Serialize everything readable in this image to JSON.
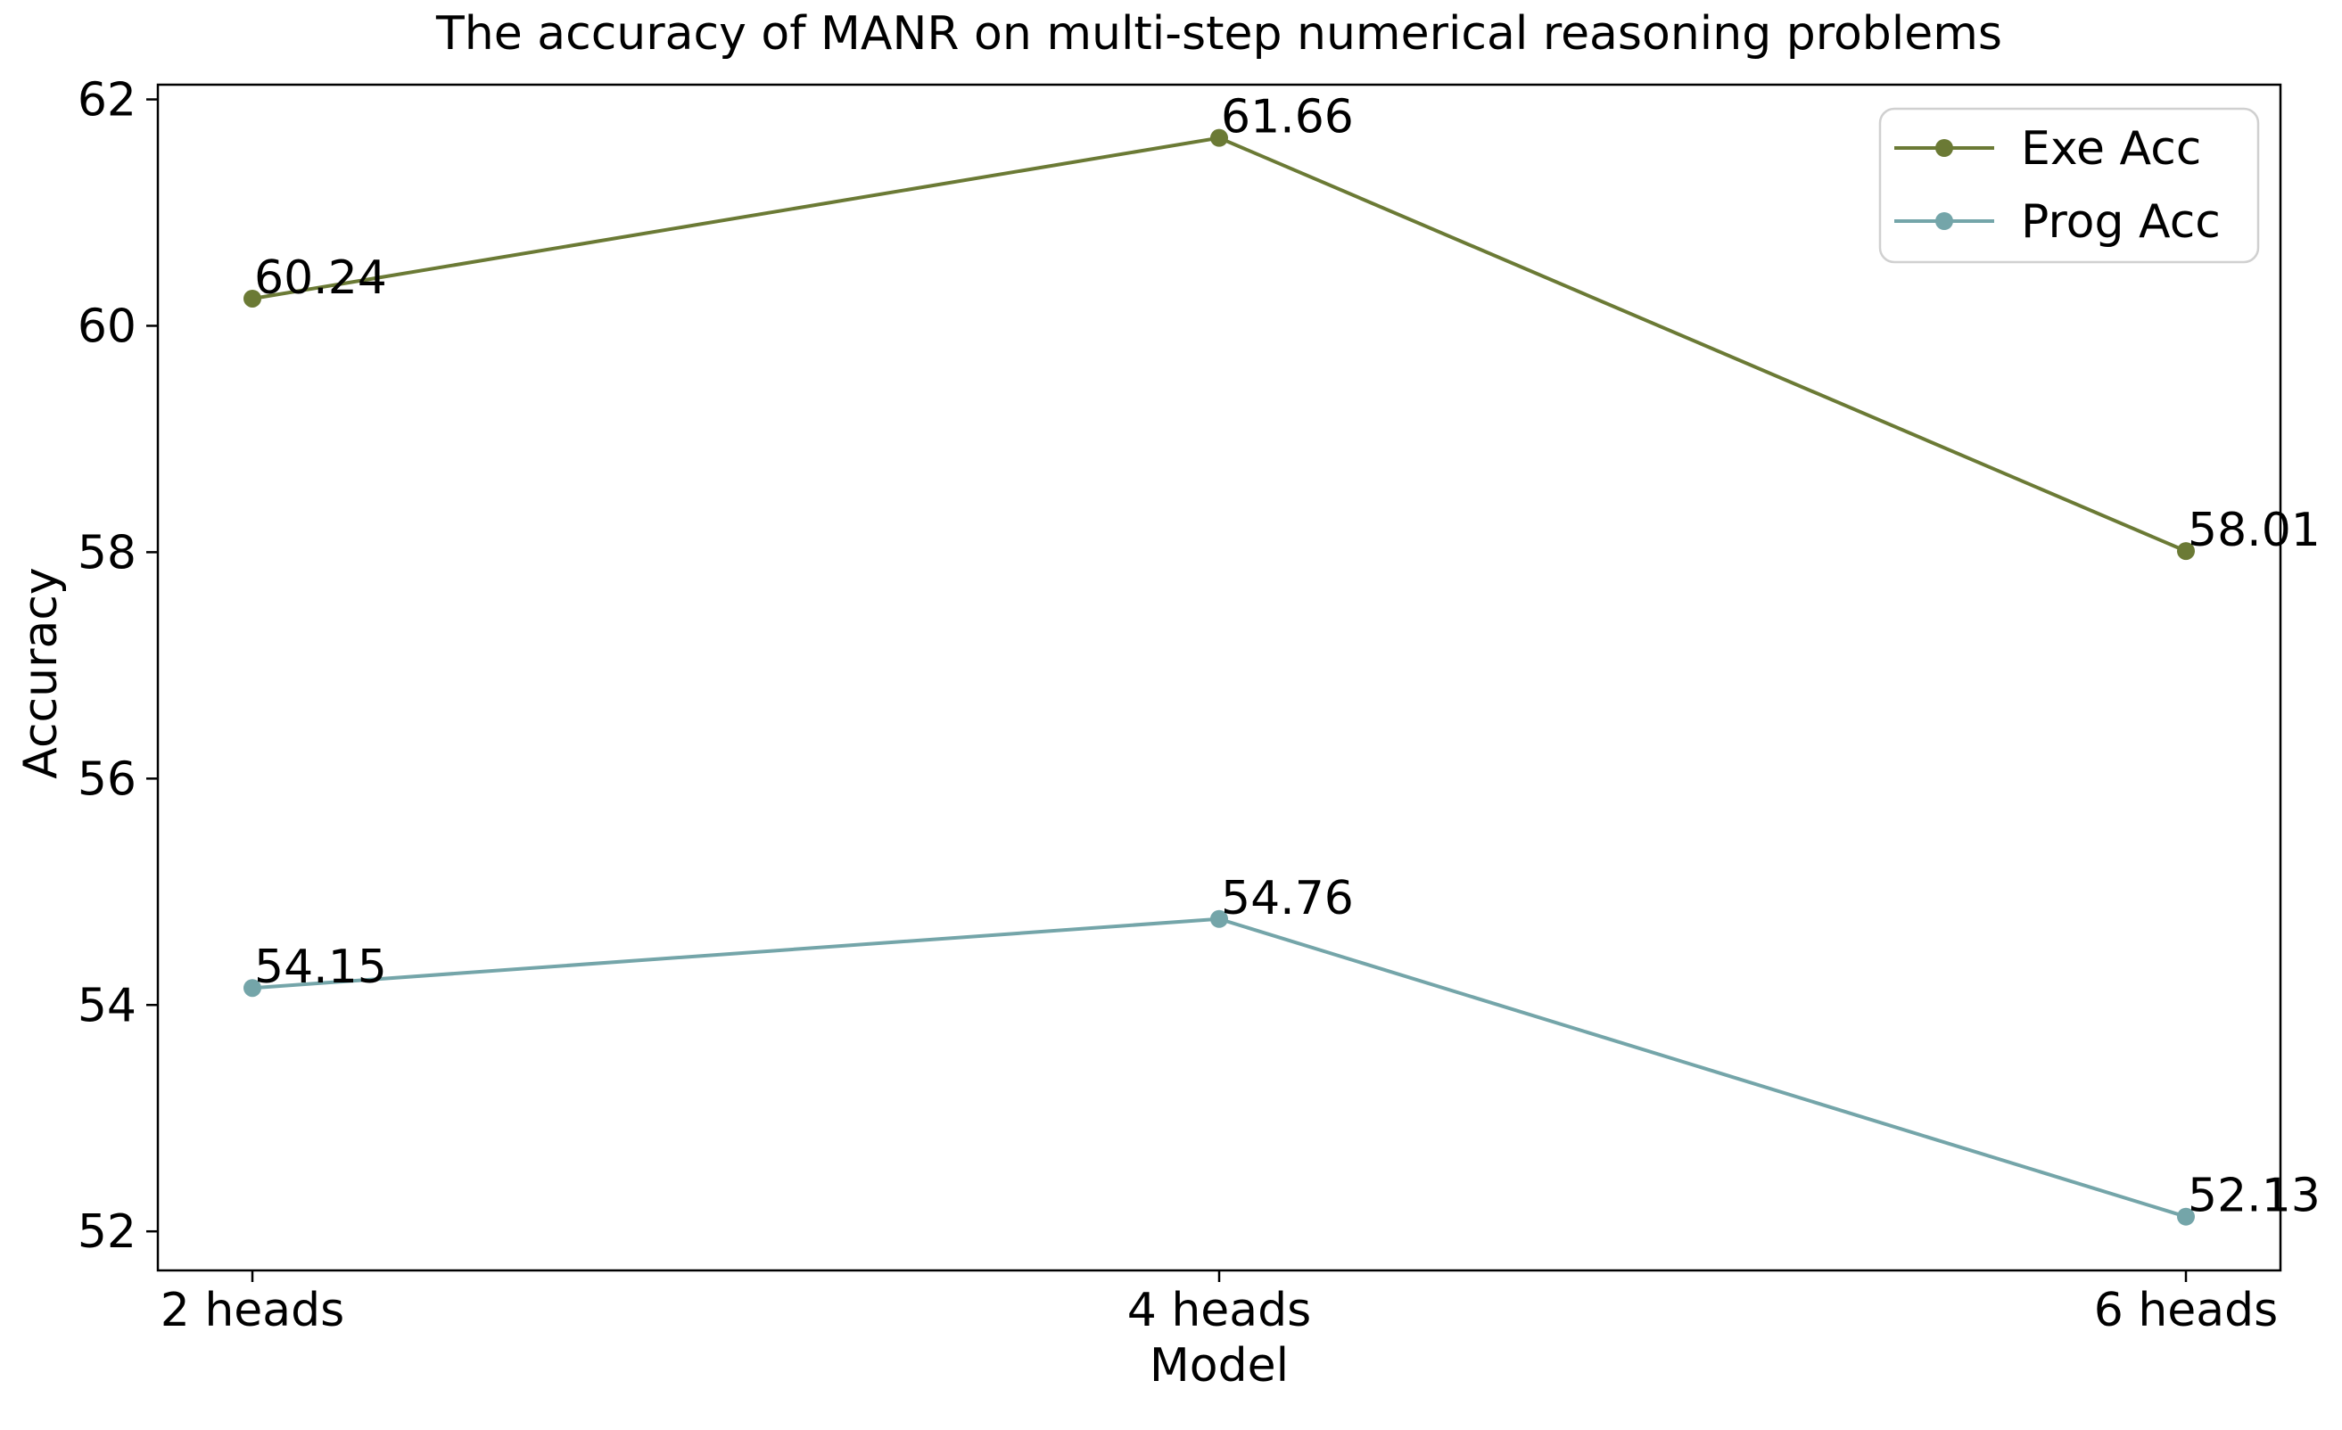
{
  "figure": {
    "title": "The accuracy of MANR on multi-step numerical reasoning problems",
    "xlabel": "Model",
    "ylabel": "Accuracy"
  },
  "chart_data": {
    "type": "line",
    "title": "The accuracy of MANR on multi-step numerical reasoning problems",
    "xlabel": "Model",
    "ylabel": "Accuracy",
    "categories": [
      "2 heads",
      "4 heads",
      "6 heads"
    ],
    "series": [
      {
        "name": "Exe Acc",
        "values": [
          60.24,
          61.66,
          58.01
        ],
        "point_labels": [
          "60.24",
          "61.66",
          "58.01"
        ],
        "color": "#6b7a35",
        "marker": "circle"
      },
      {
        "name": "Prog Acc",
        "values": [
          54.15,
          54.76,
          52.13
        ],
        "point_labels": [
          "54.15",
          "54.76",
          "52.13"
        ],
        "color": "#74a5a9",
        "marker": "circle"
      }
    ],
    "yticks": [
      52,
      54,
      56,
      58,
      60,
      62
    ],
    "ylim": [
      51.655,
      62.13
    ],
    "grid": false,
    "legend": {
      "entries": [
        "Exe Acc",
        "Prog Acc"
      ],
      "position": "upper right"
    }
  },
  "colors": {
    "text": "#000000",
    "spine": "#000000",
    "legend_border": "#d0d0d0",
    "background": "#ffffff"
  }
}
